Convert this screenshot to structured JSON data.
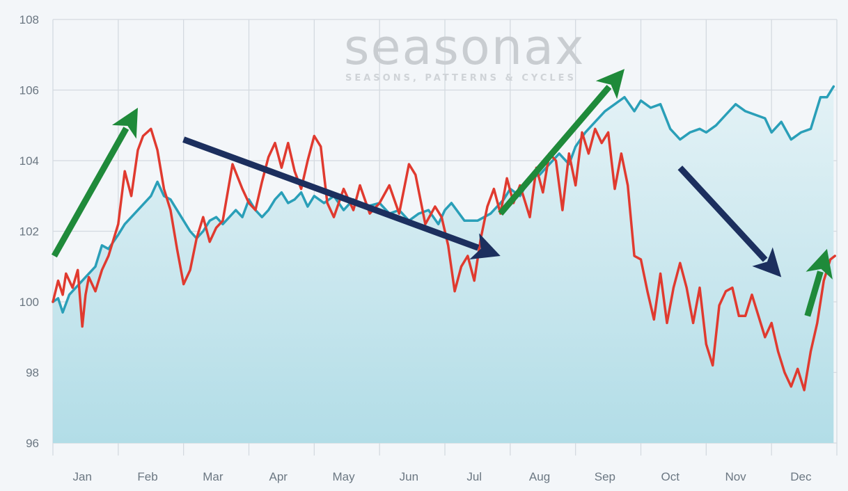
{
  "watermark": {
    "brand": "seasonax",
    "tagline": "SEASONS, PATTERNS & CYCLES"
  },
  "chart_data": {
    "type": "line",
    "title": "",
    "xlabel": "",
    "ylabel": "",
    "ylim": [
      96,
      108
    ],
    "yticks": [
      96,
      98,
      100,
      102,
      104,
      106,
      108
    ],
    "xtick_labels": [
      "Jan",
      "Feb",
      "Mar",
      "Apr",
      "May",
      "Jun",
      "Jul",
      "Aug",
      "Sep",
      "Oct",
      "Nov",
      "Dec"
    ],
    "x_unit": "month of year",
    "grid": true,
    "legend": "none",
    "colors": {
      "series_teal": "#2a9fb8",
      "series_red": "#e03a2f",
      "area_fill_top": "#e2f0f4",
      "area_fill_bottom": "#b4dfe8",
      "arrow_green": "#1f8a3a",
      "arrow_navy": "#1c2f5e",
      "grid": "#d4dae0",
      "background": "#f3f6f9"
    },
    "series": [
      {
        "x": [
          0.0,
          0.08,
          0.15,
          0.25,
          0.35,
          0.45,
          0.55,
          0.65,
          0.75,
          0.85,
          1.0,
          1.1,
          1.2,
          1.3,
          1.4,
          1.5,
          1.6,
          1.7,
          1.8,
          1.9,
          2.0,
          2.1,
          2.2,
          2.3,
          2.4,
          2.5,
          2.6,
          2.7,
          2.8,
          2.9,
          3.0,
          3.1,
          3.2,
          3.3,
          3.4,
          3.5,
          3.6,
          3.7,
          3.8,
          3.9,
          4.0,
          4.15,
          4.3,
          4.45,
          4.6,
          4.8,
          5.0,
          5.15,
          5.3,
          5.45,
          5.6,
          5.75,
          5.9,
          6.0,
          6.1,
          6.3,
          6.5,
          6.7,
          6.9,
          7.0,
          7.15,
          7.3,
          7.45,
          7.6,
          7.75,
          7.9,
          8.0,
          8.15,
          8.3,
          8.45,
          8.6,
          8.75,
          8.9,
          9.0,
          9.15,
          9.3,
          9.45,
          9.6,
          9.75,
          9.9,
          10.0,
          10.15,
          10.3,
          10.45,
          10.6,
          10.75,
          10.9,
          11.0,
          11.15,
          11.3,
          11.45,
          11.6,
          11.75,
          11.85,
          11.95
        ],
        "values": [
          100.0,
          100.1,
          99.7,
          100.2,
          100.4,
          100.6,
          100.8,
          101.0,
          101.6,
          101.5,
          101.9,
          102.2,
          102.4,
          102.6,
          102.8,
          103.0,
          103.4,
          103.0,
          102.9,
          102.6,
          102.3,
          102.0,
          101.8,
          102.0,
          102.3,
          102.4,
          102.2,
          102.4,
          102.6,
          102.4,
          102.9,
          102.6,
          102.4,
          102.6,
          102.9,
          103.1,
          102.8,
          102.9,
          103.1,
          102.7,
          103.0,
          102.8,
          103.0,
          102.6,
          102.9,
          102.7,
          102.8,
          102.5,
          102.6,
          102.3,
          102.5,
          102.6,
          102.2,
          102.6,
          102.8,
          102.3,
          102.3,
          102.5,
          102.9,
          103.2,
          103.0,
          103.5,
          103.6,
          103.9,
          104.2,
          103.9,
          104.4,
          104.8,
          105.1,
          105.4,
          105.6,
          105.8,
          105.4,
          105.7,
          105.5,
          105.6,
          104.9,
          104.6,
          104.8,
          104.9,
          104.8,
          105.0,
          105.3,
          105.6,
          105.4,
          105.3,
          105.2,
          104.8,
          105.1,
          104.6,
          104.8,
          104.9,
          105.8,
          105.8,
          106.1
        ]
      },
      {
        "x": [
          0.0,
          0.08,
          0.15,
          0.2,
          0.3,
          0.38,
          0.45,
          0.5,
          0.55,
          0.65,
          0.75,
          0.85,
          1.0,
          1.1,
          1.2,
          1.3,
          1.38,
          1.5,
          1.6,
          1.7,
          1.8,
          1.9,
          2.0,
          2.1,
          2.2,
          2.3,
          2.4,
          2.5,
          2.6,
          2.75,
          2.9,
          3.0,
          3.1,
          3.2,
          3.3,
          3.4,
          3.5,
          3.6,
          3.7,
          3.8,
          3.9,
          4.0,
          4.1,
          4.2,
          4.3,
          4.45,
          4.6,
          4.7,
          4.85,
          5.0,
          5.15,
          5.3,
          5.45,
          5.55,
          5.7,
          5.85,
          5.95,
          6.05,
          6.15,
          6.25,
          6.35,
          6.45,
          6.55,
          6.65,
          6.75,
          6.85,
          6.95,
          7.05,
          7.15,
          7.3,
          7.4,
          7.5,
          7.6,
          7.7,
          7.8,
          7.9,
          8.0,
          8.1,
          8.2,
          8.3,
          8.4,
          8.5,
          8.6,
          8.7,
          8.8,
          8.9,
          9.0,
          9.1,
          9.2,
          9.3,
          9.4,
          9.5,
          9.6,
          9.7,
          9.8,
          9.9,
          10.0,
          10.1,
          10.2,
          10.3,
          10.4,
          10.5,
          10.6,
          10.7,
          10.8,
          10.9,
          11.0,
          11.1,
          11.2,
          11.3,
          11.4,
          11.5,
          11.6,
          11.7,
          11.8,
          11.9,
          11.97
        ],
        "values": [
          100.0,
          100.6,
          100.2,
          100.8,
          100.4,
          100.9,
          99.3,
          100.2,
          100.7,
          100.3,
          100.9,
          101.3,
          102.2,
          103.7,
          103.0,
          104.3,
          104.7,
          104.9,
          104.3,
          103.2,
          102.6,
          101.5,
          100.5,
          100.9,
          101.8,
          102.4,
          101.7,
          102.1,
          102.3,
          103.9,
          103.2,
          102.8,
          102.6,
          103.4,
          104.1,
          104.5,
          103.8,
          104.5,
          103.7,
          103.2,
          104.0,
          104.7,
          104.4,
          102.8,
          102.4,
          103.2,
          102.6,
          103.3,
          102.5,
          102.8,
          103.3,
          102.5,
          103.9,
          103.6,
          102.2,
          102.7,
          102.4,
          101.6,
          100.3,
          101.0,
          101.3,
          100.6,
          101.8,
          102.7,
          103.2,
          102.5,
          103.5,
          102.8,
          103.3,
          102.4,
          103.8,
          103.1,
          104.2,
          104.0,
          102.6,
          104.2,
          103.3,
          104.8,
          104.2,
          104.9,
          104.5,
          104.8,
          103.2,
          104.2,
          103.3,
          101.3,
          101.2,
          100.3,
          99.5,
          100.8,
          99.4,
          100.4,
          101.1,
          100.4,
          99.4,
          100.4,
          98.8,
          98.2,
          99.9,
          100.3,
          100.4,
          99.6,
          99.6,
          100.2,
          99.6,
          99.0,
          99.4,
          98.6,
          98.0,
          97.6,
          98.1,
          97.5,
          98.6,
          99.4,
          100.6,
          101.2,
          101.3
        ]
      }
    ]
  }
}
